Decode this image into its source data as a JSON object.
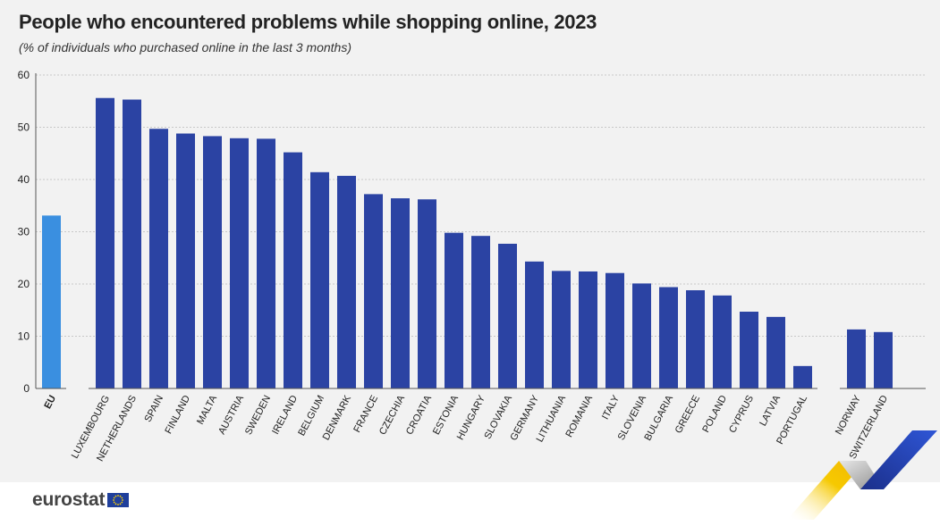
{
  "header": {
    "title": "People who encountered problems while shopping online, 2023",
    "subtitle": "(% of individuals who purchased online in the last 3 months)"
  },
  "brand": {
    "logo_text": "eurostat",
    "flag_icon": "eu-flag-icon"
  },
  "colors": {
    "eu_bar": "#3a8fe0",
    "country_bar": "#2b43a3",
    "panel": "#f2f2f2",
    "grid": "#c8c8c8"
  },
  "chart_data": {
    "type": "bar",
    "title": "People who encountered problems while shopping online, 2023",
    "subtitle": "(% of individuals who purchased online in the last 3 months)",
    "xlabel": "",
    "ylabel": "",
    "ylim": [
      0,
      60
    ],
    "yticks": [
      0,
      10,
      20,
      30,
      40,
      50,
      60
    ],
    "grid": true,
    "categories": [
      "EU",
      "LUXEMBOURG",
      "NETHERLANDS",
      "SPAIN",
      "FINLAND",
      "MALTA",
      "AUSTRIA",
      "SWEDEN",
      "IRELAND",
      "BELGIUM",
      "DENMARK",
      "FRANCE",
      "CZECHIA",
      "CROATIA",
      "ESTONIA",
      "HUNGARY",
      "SLOVAKIA",
      "GERMANY",
      "LITHUANIA",
      "ROMANIA",
      "ITALY",
      "SLOVENIA",
      "BULGARIA",
      "GREECE",
      "POLAND",
      "CYPRUS",
      "LATVIA",
      "PORTUGAL",
      "NORWAY",
      "SWITZERLAND"
    ],
    "values": [
      33.1,
      55.6,
      55.3,
      49.7,
      48.8,
      48.3,
      47.9,
      47.8,
      45.2,
      41.4,
      40.7,
      37.2,
      36.4,
      36.2,
      29.8,
      29.2,
      27.7,
      24.3,
      22.5,
      22.4,
      22.1,
      20.1,
      19.4,
      18.8,
      17.8,
      14.7,
      13.7,
      4.3,
      11.3,
      10.8
    ],
    "highlight": [
      "EU"
    ],
    "groups": [
      {
        "members": [
          "EU"
        ]
      },
      {
        "members": [
          "LUXEMBOURG",
          "NETHERLANDS",
          "SPAIN",
          "FINLAND",
          "MALTA",
          "AUSTRIA",
          "SWEDEN",
          "IRELAND",
          "BELGIUM",
          "DENMARK",
          "FRANCE",
          "CZECHIA",
          "CROATIA",
          "ESTONIA",
          "HUNGARY",
          "SLOVAKIA",
          "GERMANY",
          "LITHUANIA",
          "ROMANIA",
          "ITALY",
          "SLOVENIA",
          "BULGARIA",
          "GREECE",
          "POLAND",
          "CYPRUS",
          "LATVIA",
          "PORTUGAL"
        ]
      },
      {
        "members": [
          "NORWAY",
          "SWITZERLAND"
        ]
      }
    ]
  }
}
